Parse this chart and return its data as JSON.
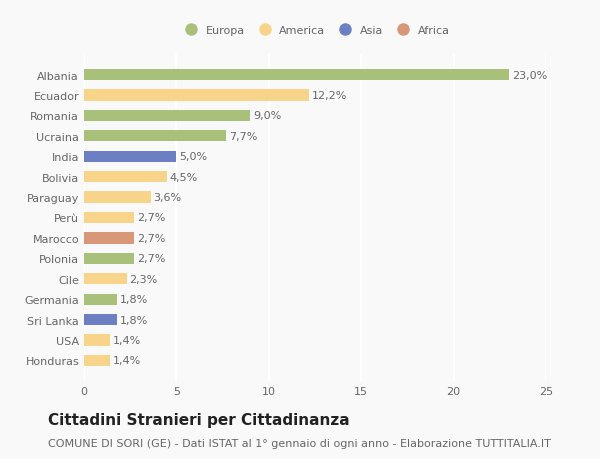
{
  "countries": [
    "Albania",
    "Ecuador",
    "Romania",
    "Ucraina",
    "India",
    "Bolivia",
    "Paraguay",
    "Perù",
    "Marocco",
    "Polonia",
    "Cile",
    "Germania",
    "Sri Lanka",
    "USA",
    "Honduras"
  ],
  "values": [
    23.0,
    12.2,
    9.0,
    7.7,
    5.0,
    4.5,
    3.6,
    2.7,
    2.7,
    2.7,
    2.3,
    1.8,
    1.8,
    1.4,
    1.4
  ],
  "continents": [
    "Europa",
    "America",
    "Europa",
    "Europa",
    "Asia",
    "America",
    "America",
    "America",
    "Africa",
    "Europa",
    "America",
    "Europa",
    "Asia",
    "America",
    "America"
  ],
  "continent_colors": {
    "Europa": "#a8c07a",
    "America": "#f7d48a",
    "Asia": "#6b7fc2",
    "Africa": "#d9977a"
  },
  "legend_order": [
    "Europa",
    "America",
    "Asia",
    "Africa"
  ],
  "xlim": [
    0,
    25
  ],
  "xticks": [
    0,
    5,
    10,
    15,
    20,
    25
  ],
  "title": "Cittadini Stranieri per Cittadinanza",
  "subtitle": "COMUNE DI SORI (GE) - Dati ISTAT al 1° gennaio di ogni anno - Elaborazione TUTTITALIA.IT",
  "background_color": "#f9f9f9",
  "grid_color": "#ffffff",
  "bar_height": 0.55,
  "title_fontsize": 11,
  "subtitle_fontsize": 8,
  "label_fontsize": 8,
  "tick_fontsize": 8
}
